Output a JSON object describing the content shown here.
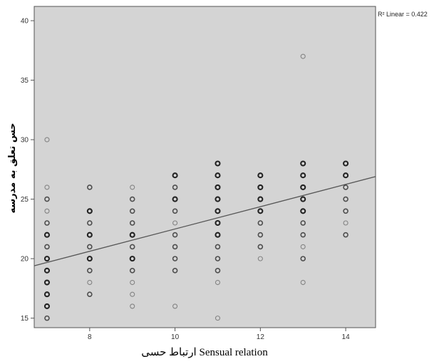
{
  "chart_data": {
    "type": "scatter",
    "title": "",
    "xlabel": "ارتباط حسی Sensual relation",
    "ylabel": "حس تعلق به مدرسه",
    "xlim": [
      6.7,
      14.7
    ],
    "ylim": [
      14.2,
      41.2
    ],
    "xticks": [
      8,
      10,
      12,
      14
    ],
    "yticks": [
      15,
      20,
      25,
      30,
      35,
      40
    ],
    "grid": false,
    "background": "#d4d4d4",
    "marker_color": "#222222",
    "fit_line": {
      "label": "R² Linear = 0.422",
      "x": [
        6.7,
        14.7
      ],
      "y": [
        19.4,
        26.9
      ],
      "color": "#555555"
    },
    "points": [
      {
        "x": 7,
        "y": 15,
        "n": 2
      },
      {
        "x": 7,
        "y": 16,
        "n": 3
      },
      {
        "x": 7,
        "y": 17,
        "n": 3
      },
      {
        "x": 7,
        "y": 18,
        "n": 3
      },
      {
        "x": 7,
        "y": 19,
        "n": 3
      },
      {
        "x": 7,
        "y": 20,
        "n": 3
      },
      {
        "x": 7,
        "y": 21,
        "n": 2
      },
      {
        "x": 7,
        "y": 22,
        "n": 3
      },
      {
        "x": 7,
        "y": 23,
        "n": 2
      },
      {
        "x": 7,
        "y": 24,
        "n": 1
      },
      {
        "x": 7,
        "y": 25,
        "n": 2
      },
      {
        "x": 7,
        "y": 26,
        "n": 1
      },
      {
        "x": 7,
        "y": 30,
        "n": 1
      },
      {
        "x": 8,
        "y": 17,
        "n": 2
      },
      {
        "x": 8,
        "y": 18,
        "n": 1
      },
      {
        "x": 8,
        "y": 19,
        "n": 2
      },
      {
        "x": 8,
        "y": 20,
        "n": 3
      },
      {
        "x": 8,
        "y": 21,
        "n": 2
      },
      {
        "x": 8,
        "y": 22,
        "n": 3
      },
      {
        "x": 8,
        "y": 23,
        "n": 2
      },
      {
        "x": 8,
        "y": 24,
        "n": 3
      },
      {
        "x": 8,
        "y": 26,
        "n": 2
      },
      {
        "x": 9,
        "y": 16,
        "n": 1
      },
      {
        "x": 9,
        "y": 17,
        "n": 1
      },
      {
        "x": 9,
        "y": 18,
        "n": 1
      },
      {
        "x": 9,
        "y": 19,
        "n": 2
      },
      {
        "x": 9,
        "y": 20,
        "n": 3
      },
      {
        "x": 9,
        "y": 21,
        "n": 2
      },
      {
        "x": 9,
        "y": 22,
        "n": 3
      },
      {
        "x": 9,
        "y": 23,
        "n": 2
      },
      {
        "x": 9,
        "y": 24,
        "n": 2
      },
      {
        "x": 9,
        "y": 25,
        "n": 2
      },
      {
        "x": 9,
        "y": 26,
        "n": 1
      },
      {
        "x": 10,
        "y": 16,
        "n": 1
      },
      {
        "x": 10,
        "y": 19,
        "n": 2
      },
      {
        "x": 10,
        "y": 20,
        "n": 2
      },
      {
        "x": 10,
        "y": 21,
        "n": 2
      },
      {
        "x": 10,
        "y": 22,
        "n": 2
      },
      {
        "x": 10,
        "y": 23,
        "n": 1
      },
      {
        "x": 10,
        "y": 24,
        "n": 2
      },
      {
        "x": 10,
        "y": 25,
        "n": 3
      },
      {
        "x": 10,
        "y": 26,
        "n": 2
      },
      {
        "x": 10,
        "y": 27,
        "n": 3
      },
      {
        "x": 11,
        "y": 15,
        "n": 1
      },
      {
        "x": 11,
        "y": 18,
        "n": 1
      },
      {
        "x": 11,
        "y": 19,
        "n": 2
      },
      {
        "x": 11,
        "y": 20,
        "n": 2
      },
      {
        "x": 11,
        "y": 21,
        "n": 2
      },
      {
        "x": 11,
        "y": 22,
        "n": 3
      },
      {
        "x": 11,
        "y": 23,
        "n": 3
      },
      {
        "x": 11,
        "y": 24,
        "n": 3
      },
      {
        "x": 11,
        "y": 25,
        "n": 3
      },
      {
        "x": 11,
        "y": 26,
        "n": 3
      },
      {
        "x": 11,
        "y": 27,
        "n": 3
      },
      {
        "x": 11,
        "y": 28,
        "n": 3
      },
      {
        "x": 12,
        "y": 20,
        "n": 1
      },
      {
        "x": 12,
        "y": 21,
        "n": 2
      },
      {
        "x": 12,
        "y": 22,
        "n": 2
      },
      {
        "x": 12,
        "y": 23,
        "n": 2
      },
      {
        "x": 12,
        "y": 24,
        "n": 3
      },
      {
        "x": 12,
        "y": 25,
        "n": 3
      },
      {
        "x": 12,
        "y": 26,
        "n": 3
      },
      {
        "x": 12,
        "y": 27,
        "n": 3
      },
      {
        "x": 13,
        "y": 18,
        "n": 1
      },
      {
        "x": 13,
        "y": 20,
        "n": 2
      },
      {
        "x": 13,
        "y": 21,
        "n": 1
      },
      {
        "x": 13,
        "y": 22,
        "n": 2
      },
      {
        "x": 13,
        "y": 23,
        "n": 2
      },
      {
        "x": 13,
        "y": 24,
        "n": 3
      },
      {
        "x": 13,
        "y": 25,
        "n": 3
      },
      {
        "x": 13,
        "y": 26,
        "n": 3
      },
      {
        "x": 13,
        "y": 27,
        "n": 3
      },
      {
        "x": 13,
        "y": 28,
        "n": 3
      },
      {
        "x": 13,
        "y": 37,
        "n": 1
      },
      {
        "x": 14,
        "y": 22,
        "n": 2
      },
      {
        "x": 14,
        "y": 23,
        "n": 1
      },
      {
        "x": 14,
        "y": 24,
        "n": 2
      },
      {
        "x": 14,
        "y": 25,
        "n": 2
      },
      {
        "x": 14,
        "y": 26,
        "n": 2
      },
      {
        "x": 14,
        "y": 27,
        "n": 3
      },
      {
        "x": 14,
        "y": 28,
        "n": 3
      }
    ]
  }
}
